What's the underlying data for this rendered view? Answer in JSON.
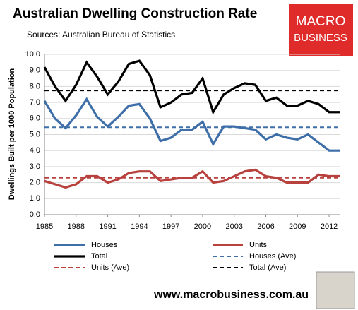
{
  "chart_data": {
    "type": "line",
    "title": "Australian Dwelling Construction Rate",
    "subtitle": "Sources: Australian Bureau of Statistics",
    "y_label": "Dwellings Built per 1000 Population",
    "logo": [
      "MACRO",
      "BUSINESS"
    ],
    "footer": "www.macrobusiness.com.au",
    "x": [
      1985,
      1986,
      1987,
      1988,
      1989,
      1990,
      1991,
      1992,
      1993,
      1994,
      1995,
      1996,
      1997,
      1998,
      1999,
      2000,
      2001,
      2002,
      2003,
      2004,
      2005,
      2006,
      2007,
      2008,
      2009,
      2010,
      2011,
      2012,
      2013
    ],
    "xlim": [
      1985,
      2013
    ],
    "xticks": [
      1985,
      1988,
      1991,
      1994,
      1997,
      2000,
      2003,
      2006,
      2009,
      2012
    ],
    "ylim": [
      0,
      10
    ],
    "yticks": [
      {
        "value": 0,
        "label": "0.0"
      },
      {
        "value": 1,
        "label": "1.0"
      },
      {
        "value": 2,
        "label": "2.0"
      },
      {
        "value": 3,
        "label": "3.0"
      },
      {
        "value": 4,
        "label": "4.0"
      },
      {
        "value": 5,
        "label": "5.0"
      },
      {
        "value": 6,
        "label": "6.0"
      },
      {
        "value": 7,
        "label": "7.0"
      },
      {
        "value": 8,
        "label": "8.0"
      },
      {
        "value": 9,
        "label": "9.0"
      },
      {
        "value": 10,
        "label": "10.0"
      }
    ],
    "grid": true,
    "series": [
      {
        "name": "Houses",
        "color": "#3f6fa8",
        "dash": false,
        "values": [
          7.1,
          6.0,
          5.4,
          6.2,
          7.2,
          6.1,
          5.5,
          6.1,
          6.8,
          6.9,
          6.0,
          4.6,
          4.8,
          5.3,
          5.3,
          5.8,
          4.4,
          5.5,
          5.5,
          5.4,
          5.3,
          4.7,
          5.0,
          4.8,
          4.7,
          5.0,
          4.5,
          4.0,
          4.0
        ]
      },
      {
        "name": "Units",
        "color": "#b8413e",
        "dash": false,
        "values": [
          2.1,
          1.9,
          1.7,
          1.9,
          2.4,
          2.4,
          2.0,
          2.2,
          2.6,
          2.7,
          2.7,
          2.1,
          2.2,
          2.3,
          2.3,
          2.7,
          2.0,
          2.1,
          2.4,
          2.7,
          2.8,
          2.4,
          2.3,
          2.0,
          2.0,
          2.0,
          2.5,
          2.4,
          2.4
        ]
      },
      {
        "name": "Total",
        "color": "#000000",
        "dash": false,
        "values": [
          9.2,
          8.0,
          7.1,
          8.1,
          9.5,
          8.6,
          7.5,
          8.3,
          9.4,
          9.6,
          8.7,
          6.7,
          7.0,
          7.5,
          7.6,
          8.5,
          6.4,
          7.5,
          7.9,
          8.2,
          8.1,
          7.1,
          7.3,
          6.8,
          6.8,
          7.1,
          6.9,
          6.4,
          6.4
        ]
      },
      {
        "name": "Houses (Ave)",
        "color": "#3f6fa8",
        "dash": true,
        "values": [
          5.45,
          5.45,
          5.45,
          5.45,
          5.45,
          5.45,
          5.45,
          5.45,
          5.45,
          5.45,
          5.45,
          5.45,
          5.45,
          5.45,
          5.45,
          5.45,
          5.45,
          5.45,
          5.45,
          5.45,
          5.45,
          5.45,
          5.45,
          5.45,
          5.45,
          5.45,
          5.45,
          5.45,
          5.45
        ]
      },
      {
        "name": "Units (Ave)",
        "color": "#b8413e",
        "dash": true,
        "values": [
          2.3,
          2.3,
          2.3,
          2.3,
          2.3,
          2.3,
          2.3,
          2.3,
          2.3,
          2.3,
          2.3,
          2.3,
          2.3,
          2.3,
          2.3,
          2.3,
          2.3,
          2.3,
          2.3,
          2.3,
          2.3,
          2.3,
          2.3,
          2.3,
          2.3,
          2.3,
          2.3,
          2.3,
          2.3
        ]
      },
      {
        "name": "Total (Ave)",
        "color": "#000000",
        "dash": true,
        "values": [
          7.75,
          7.75,
          7.75,
          7.75,
          7.75,
          7.75,
          7.75,
          7.75,
          7.75,
          7.75,
          7.75,
          7.75,
          7.75,
          7.75,
          7.75,
          7.75,
          7.75,
          7.75,
          7.75,
          7.75,
          7.75,
          7.75,
          7.75,
          7.75,
          7.75,
          7.75,
          7.75,
          7.75,
          7.75
        ]
      }
    ]
  }
}
